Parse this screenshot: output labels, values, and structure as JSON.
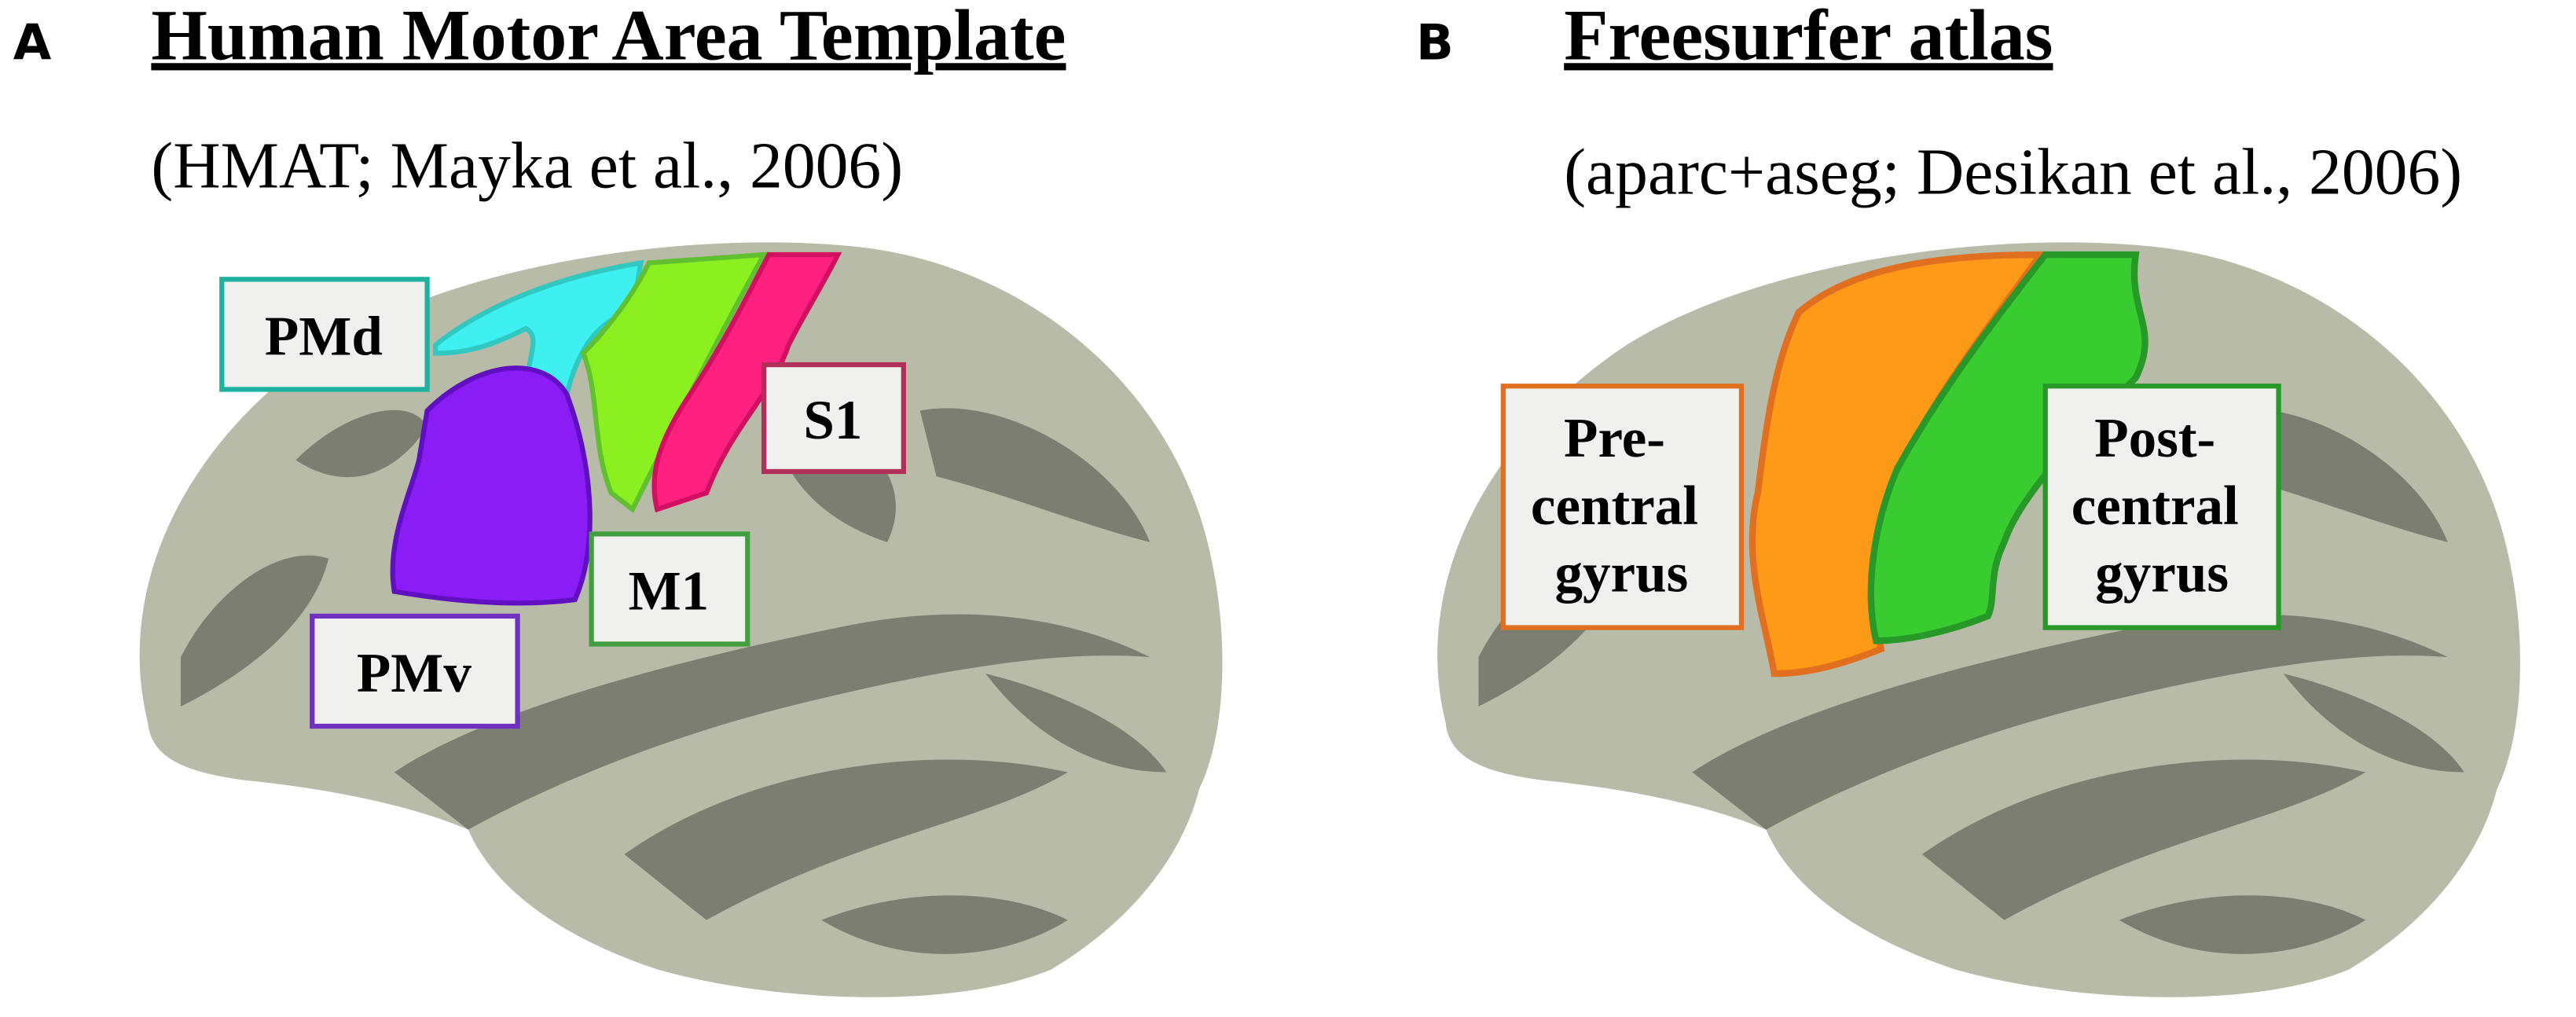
{
  "panels": [
    {
      "letter": "A",
      "title": "Human Motor Area Template",
      "subtitle": "(HMAT; Mayka et al., 2006)",
      "labels": [
        {
          "lines": [
            "PMd"
          ]
        },
        {
          "lines": [
            "S1"
          ]
        },
        {
          "lines": [
            "M1"
          ]
        },
        {
          "lines": [
            "PMv"
          ]
        }
      ]
    },
    {
      "letter": "B",
      "title": "Freesurfer atlas",
      "subtitle": "(aparc+aseg; Desikan et al., 2006)",
      "labels": [
        {
          "lines": [
            "Pre-",
            "central",
            "gyrus"
          ]
        },
        {
          "lines": [
            "Post-",
            "central",
            "gyrus"
          ]
        }
      ]
    }
  ]
}
